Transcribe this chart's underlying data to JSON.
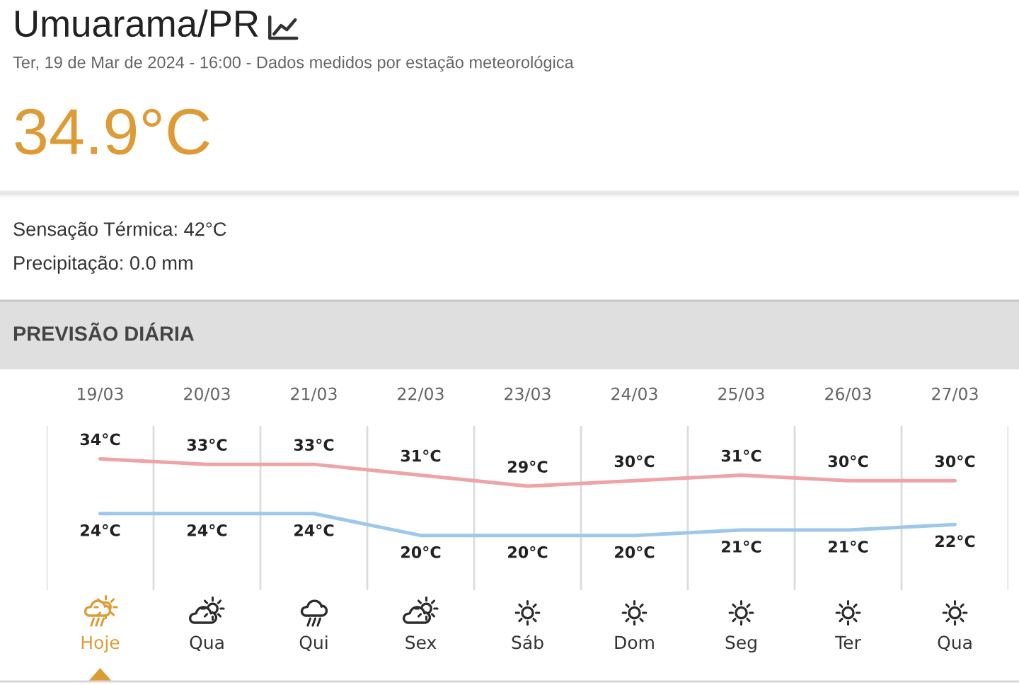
{
  "chart_data": {
    "type": "line",
    "title": "Umuarama/PR",
    "subtitle": "Ter, 19 de Mar de 2024 - 16:00 - Dados medidos por estação meteorológica",
    "annotations": [
      "34.9°C",
      "Sensação Térmica: 42°C",
      "Precipitação: 0.0 mm",
      "PREVISÃO DIÁRIA",
      "Hoje",
      "Qua",
      "Qui",
      "Sex",
      "Sáb",
      "Dom",
      "Seg",
      "Ter",
      "Qua"
    ],
    "categories": [
      "19/03",
      "20/03",
      "21/03",
      "22/03",
      "23/03",
      "24/03",
      "25/03",
      "26/03",
      "27/03"
    ],
    "series": [
      {
        "color": "#eea3a6",
        "values": [
          34,
          33,
          33,
          31,
          29,
          30,
          31,
          30,
          30
        ],
        "value_labels": [
          "34°C",
          "33°C",
          "33°C",
          "31°C",
          "29°C",
          "30°C",
          "31°C",
          "30°C",
          "30°C"
        ]
      },
      {
        "color": "#9dc8ec",
        "values": [
          24,
          24,
          24,
          20,
          20,
          20,
          21,
          21,
          22
        ],
        "value_labels": [
          "24°C",
          "24°C",
          "24°C",
          "20°C",
          "20°C",
          "20°C",
          "21°C",
          "21°C",
          "22°C"
        ]
      }
    ],
    "ylim": [
      10,
      40
    ],
    "grid": "x",
    "tick_labels": "x",
    "line_style": "solid"
  }
}
